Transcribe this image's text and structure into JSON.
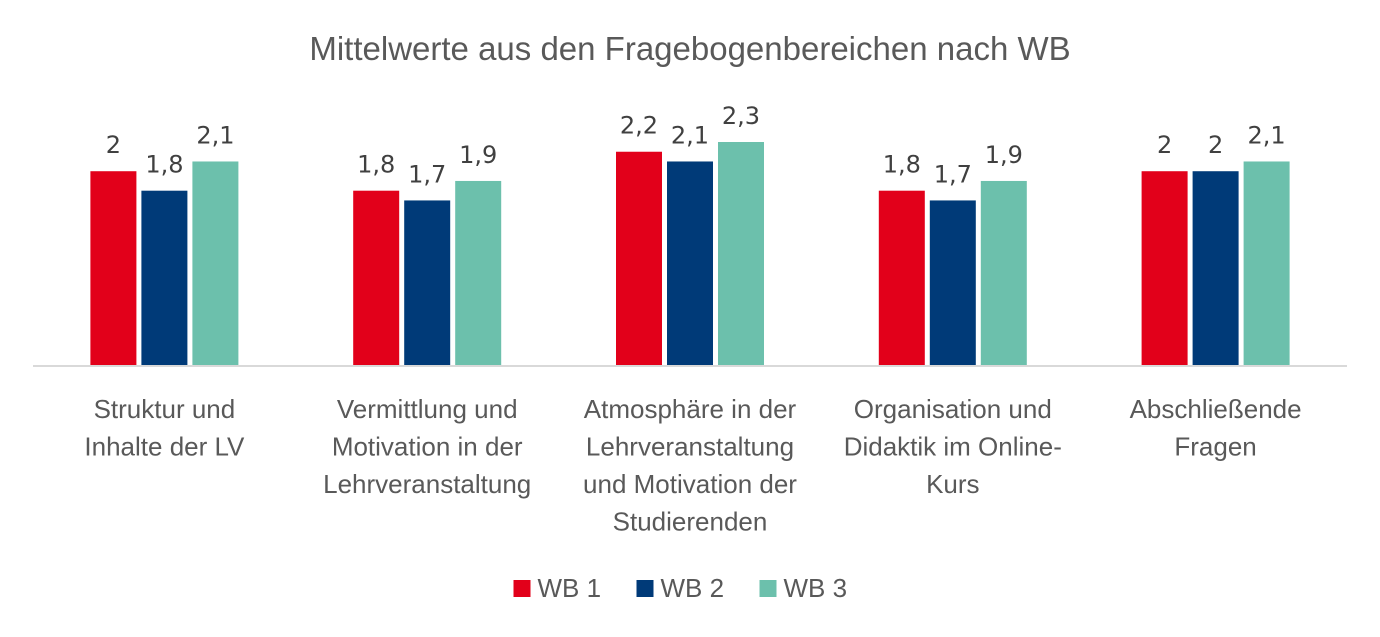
{
  "chart_data": {
    "type": "bar",
    "title": "Mittelwerte aus den Fragebogenbereichen nach WB",
    "xlabel": "",
    "ylabel": "",
    "ylim": [
      0,
      2.3
    ],
    "grid": false,
    "legend_position": "bottom",
    "categories": [
      [
        "Struktur und",
        "Inhalte der LV"
      ],
      [
        "Vermittlung und",
        "Motivation in der",
        "Lehrveranstaltung"
      ],
      [
        "Atmosphäre in der",
        "Lehrveranstaltung",
        "und Motivation der",
        "Studierenden"
      ],
      [
        "Organisation und",
        "Didaktik im Online-",
        "Kurs"
      ],
      [
        "Abschließende",
        "Fragen"
      ]
    ],
    "series": [
      {
        "name": "WB 1",
        "color": "#e2001a",
        "values": [
          2,
          1.8,
          2.2,
          1.8,
          2
        ],
        "labels": [
          "2",
          "1,8",
          "2,2",
          "1,8",
          "2"
        ]
      },
      {
        "name": "WB 2",
        "color": "#003a78",
        "values": [
          1.8,
          1.7,
          2.1,
          1.7,
          2
        ],
        "labels": [
          "1,8",
          "1,7",
          "2,1",
          "1,7",
          "2"
        ]
      },
      {
        "name": "WB 3",
        "color": "#6cc0ac",
        "values": [
          2.1,
          1.9,
          2.3,
          1.9,
          2.1
        ],
        "labels": [
          "2,1",
          "1,9",
          "2,3",
          "1,9",
          "2,1"
        ]
      }
    ]
  }
}
